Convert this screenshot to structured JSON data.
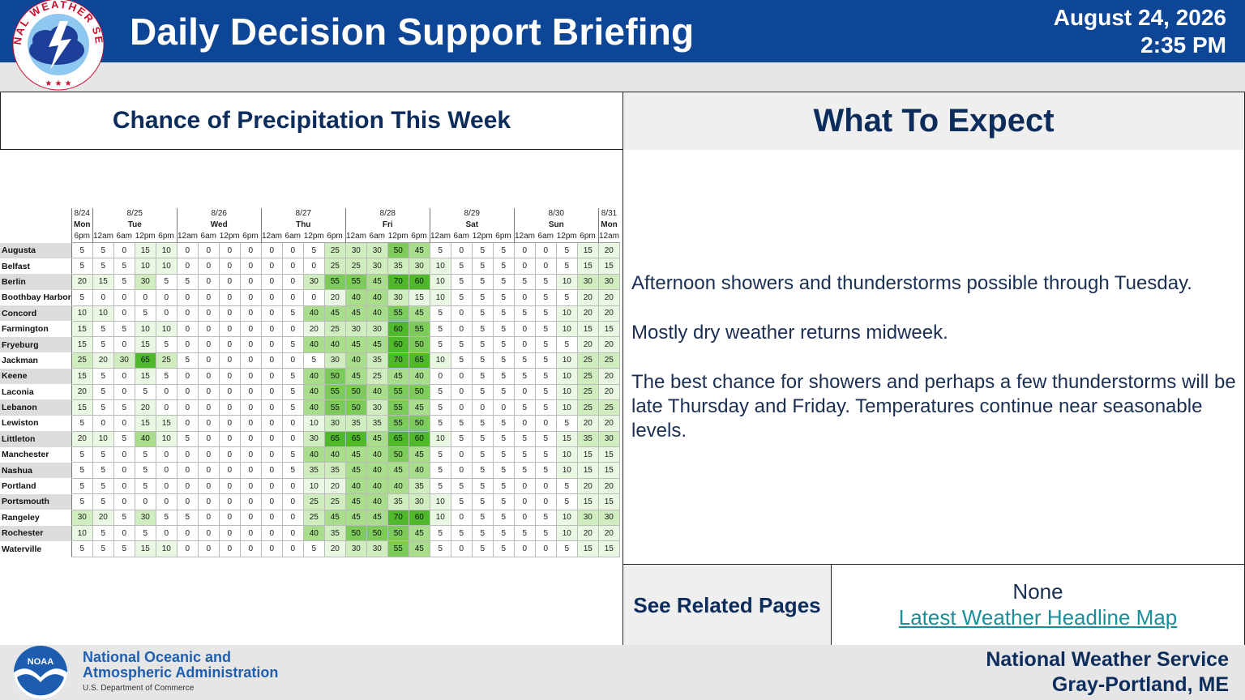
{
  "header": {
    "title": "Daily Decision Support Briefing",
    "date": "August 24, 2026",
    "time": "2:35 PM",
    "logo_text": "NATIONAL WEATHER SERVICE"
  },
  "left_panel": {
    "title": "Chance of Precipitation This Week"
  },
  "pop_table": {
    "days": [
      {
        "date": "8/24",
        "dow": "Mon",
        "hours": [
          "6pm"
        ]
      },
      {
        "date": "8/25",
        "dow": "Tue",
        "hours": [
          "12am",
          "6am",
          "12pm",
          "6pm"
        ]
      },
      {
        "date": "8/26",
        "dow": "Wed",
        "hours": [
          "12am",
          "6am",
          "12pm",
          "6pm"
        ]
      },
      {
        "date": "8/27",
        "dow": "Thu",
        "hours": [
          "12am",
          "6am",
          "12pm",
          "6pm"
        ]
      },
      {
        "date": "8/28",
        "dow": "Fri",
        "hours": [
          "12am",
          "6am",
          "12pm",
          "6pm"
        ]
      },
      {
        "date": "8/29",
        "dow": "Sat",
        "hours": [
          "12am",
          "6am",
          "12pm",
          "6pm"
        ]
      },
      {
        "date": "8/30",
        "dow": "Sun",
        "hours": [
          "12am",
          "6am",
          "12pm",
          "6pm"
        ]
      },
      {
        "date": "8/31",
        "dow": "Mon",
        "hours": [
          "12am"
        ]
      }
    ],
    "rows": [
      {
        "name": "Augusta",
        "values": [
          5,
          5,
          0,
          15,
          10,
          0,
          0,
          0,
          0,
          0,
          0,
          5,
          25,
          30,
          30,
          50,
          45,
          5,
          0,
          5,
          5,
          0,
          0,
          5,
          15,
          20
        ]
      },
      {
        "name": "Belfast",
        "values": [
          5,
          5,
          5,
          10,
          10,
          0,
          0,
          0,
          0,
          0,
          0,
          0,
          25,
          25,
          30,
          35,
          30,
          10,
          5,
          5,
          5,
          0,
          0,
          5,
          15,
          15
        ]
      },
      {
        "name": "Berlin",
        "values": [
          20,
          15,
          5,
          30,
          5,
          5,
          0,
          0,
          0,
          0,
          0,
          30,
          55,
          55,
          45,
          70,
          60,
          10,
          5,
          5,
          5,
          5,
          5,
          10,
          30,
          30
        ]
      },
      {
        "name": "Boothbay Harbor",
        "values": [
          5,
          0,
          0,
          0,
          0,
          0,
          0,
          0,
          0,
          0,
          0,
          0,
          20,
          40,
          40,
          30,
          15,
          10,
          5,
          5,
          5,
          0,
          5,
          5,
          20,
          20
        ]
      },
      {
        "name": "Concord",
        "values": [
          10,
          10,
          0,
          5,
          0,
          0,
          0,
          0,
          0,
          0,
          5,
          40,
          45,
          45,
          40,
          55,
          45,
          5,
          0,
          5,
          5,
          5,
          5,
          10,
          20,
          20
        ]
      },
      {
        "name": "Farmington",
        "values": [
          15,
          5,
          5,
          10,
          10,
          0,
          0,
          0,
          0,
          0,
          0,
          20,
          25,
          30,
          30,
          60,
          55,
          5,
          0,
          5,
          5,
          0,
          5,
          10,
          15,
          15
        ]
      },
      {
        "name": "Fryeburg",
        "values": [
          15,
          5,
          0,
          15,
          5,
          0,
          0,
          0,
          0,
          0,
          5,
          40,
          40,
          45,
          45,
          60,
          50,
          5,
          5,
          5,
          5,
          0,
          5,
          5,
          20,
          20
        ]
      },
      {
        "name": "Jackman",
        "values": [
          25,
          20,
          30,
          65,
          25,
          5,
          0,
          0,
          0,
          0,
          0,
          5,
          30,
          40,
          35,
          70,
          65,
          10,
          5,
          5,
          5,
          5,
          5,
          10,
          25,
          25
        ]
      },
      {
        "name": "Keene",
        "values": [
          15,
          5,
          0,
          15,
          5,
          0,
          0,
          0,
          0,
          0,
          5,
          40,
          50,
          45,
          25,
          45,
          40,
          0,
          0,
          5,
          5,
          5,
          5,
          10,
          25,
          20
        ]
      },
      {
        "name": "Laconia",
        "values": [
          20,
          5,
          0,
          5,
          0,
          0,
          0,
          0,
          0,
          0,
          5,
          40,
          55,
          50,
          40,
          55,
          50,
          5,
          0,
          5,
          5,
          0,
          5,
          10,
          25,
          20
        ]
      },
      {
        "name": "Lebanon",
        "values": [
          15,
          5,
          5,
          20,
          0,
          0,
          0,
          0,
          0,
          0,
          5,
          40,
          55,
          50,
          30,
          55,
          45,
          5,
          0,
          0,
          0,
          5,
          5,
          10,
          25,
          25
        ]
      },
      {
        "name": "Lewiston",
        "values": [
          5,
          0,
          0,
          15,
          15,
          0,
          0,
          0,
          0,
          0,
          0,
          10,
          30,
          35,
          35,
          55,
          50,
          5,
          5,
          5,
          5,
          0,
          0,
          5,
          20,
          20
        ]
      },
      {
        "name": "Littleton",
        "values": [
          20,
          10,
          5,
          40,
          10,
          5,
          0,
          0,
          0,
          0,
          0,
          30,
          65,
          65,
          45,
          65,
          60,
          10,
          5,
          5,
          5,
          5,
          5,
          15,
          35,
          30
        ]
      },
      {
        "name": "Manchester",
        "values": [
          5,
          5,
          0,
          5,
          0,
          0,
          0,
          0,
          0,
          0,
          5,
          40,
          40,
          45,
          40,
          50,
          45,
          5,
          0,
          5,
          5,
          5,
          5,
          10,
          15,
          15
        ]
      },
      {
        "name": "Nashua",
        "values": [
          5,
          5,
          0,
          5,
          0,
          0,
          0,
          0,
          0,
          0,
          5,
          35,
          35,
          45,
          40,
          45,
          40,
          5,
          0,
          5,
          5,
          5,
          5,
          10,
          15,
          15
        ]
      },
      {
        "name": "Portland",
        "values": [
          5,
          5,
          0,
          5,
          0,
          0,
          0,
          0,
          0,
          0,
          0,
          10,
          20,
          40,
          40,
          40,
          35,
          5,
          5,
          5,
          5,
          0,
          0,
          5,
          20,
          20
        ]
      },
      {
        "name": "Portsmouth",
        "values": [
          5,
          5,
          0,
          0,
          0,
          0,
          0,
          0,
          0,
          0,
          0,
          25,
          25,
          45,
          40,
          35,
          30,
          10,
          5,
          5,
          5,
          0,
          0,
          5,
          15,
          15
        ]
      },
      {
        "name": "Rangeley",
        "values": [
          30,
          20,
          5,
          30,
          5,
          5,
          0,
          0,
          0,
          0,
          0,
          25,
          45,
          45,
          45,
          70,
          60,
          10,
          0,
          5,
          5,
          0,
          5,
          10,
          30,
          30
        ]
      },
      {
        "name": "Rochester",
        "values": [
          10,
          5,
          0,
          5,
          0,
          0,
          0,
          0,
          0,
          0,
          0,
          40,
          35,
          50,
          50,
          50,
          45,
          5,
          5,
          5,
          5,
          5,
          5,
          10,
          20,
          20
        ]
      },
      {
        "name": "Waterville",
        "values": [
          5,
          5,
          5,
          15,
          10,
          0,
          0,
          0,
          0,
          0,
          0,
          5,
          20,
          30,
          30,
          55,
          45,
          5,
          0,
          5,
          5,
          0,
          0,
          5,
          15,
          15
        ]
      }
    ]
  },
  "right_panel": {
    "title": "What To Expect",
    "paragraphs": [
      "Afternoon showers and thunderstorms possible through Tuesday.",
      "Mostly dry weather returns midweek.",
      "The best chance for showers and perhaps a few thunderstorms will be late Thursday and Friday. Temperatures continue near seasonable levels."
    ]
  },
  "related": {
    "label": "See Related Pages",
    "none_text": "None",
    "link_text": "Latest Weather Headline Map"
  },
  "footer": {
    "noaa_line1": "National Oceanic and",
    "noaa_line2": "Atmospheric Administration",
    "noaa_sub": "U.S. Department of Commerce",
    "noaa_logo_text": "NOAA",
    "nws_line1": "National Weather Service",
    "nws_line2": "Gray-Portland, ME"
  },
  "colors": {
    "header_bg": "#0d4597",
    "title_text": "#0c2d5c",
    "link": "#1a8f9c",
    "pop_scale": [
      "#ffffff",
      "#eaf7e2",
      "#cfedbe",
      "#a8dd8b",
      "#7dcb5a",
      "#4fb92b"
    ]
  }
}
